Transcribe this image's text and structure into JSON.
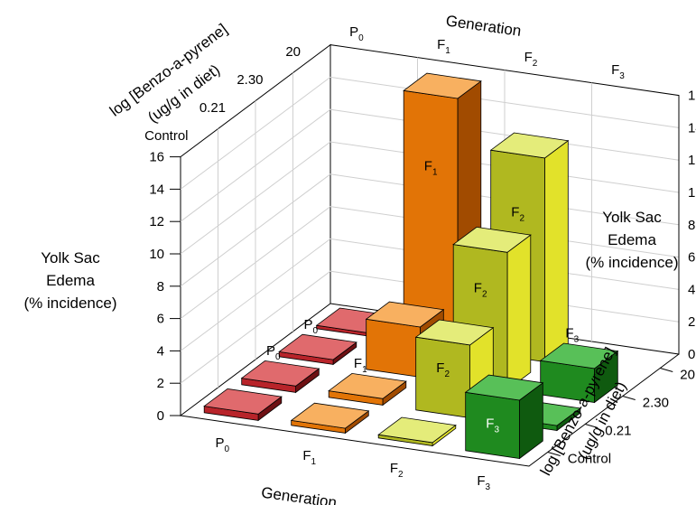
{
  "chart_data": {
    "type": "bar3d",
    "title": "",
    "x_axis": {
      "label": "Generation",
      "categories": [
        "P",
        "F",
        "F",
        "F"
      ],
      "subscripts": [
        "0",
        "1",
        "2",
        "3"
      ]
    },
    "depth_axis": {
      "label_line1": "log [Benzo-a-pyrene]",
      "label_line2": "(ug/g in diet)",
      "categories": [
        "Control",
        "0.21",
        "2.30",
        "20"
      ]
    },
    "z_axis": {
      "label_line1": "Yolk Sac",
      "label_line2": "Edema",
      "label_line3": "(% incidence)",
      "ticks": [
        "0",
        "2",
        "4",
        "6",
        "8",
        "10",
        "12",
        "14",
        "16"
      ],
      "zlim": [
        0,
        16
      ]
    },
    "bars": [
      {
        "generation": "P0",
        "dose": "Control",
        "value": 0.4
      },
      {
        "generation": "P0",
        "dose": "0.21",
        "value": 0.4
      },
      {
        "generation": "P0",
        "dose": "2.30",
        "value": 0.3
      },
      {
        "generation": "P0",
        "dose": "20",
        "value": 0.2
      },
      {
        "generation": "F1",
        "dose": "Control",
        "value": 0.3
      },
      {
        "generation": "F1",
        "dose": "0.21",
        "value": 0.4
      },
      {
        "generation": "F1",
        "dose": "2.30",
        "value": 3.1
      },
      {
        "generation": "F1",
        "dose": "20",
        "value": 15.5
      },
      {
        "generation": "F2",
        "dose": "Control",
        "value": 0.2
      },
      {
        "generation": "F2",
        "dose": "0.21",
        "value": 4.5
      },
      {
        "generation": "F2",
        "dose": "2.30",
        "value": 8.5
      },
      {
        "generation": "F2",
        "dose": "20",
        "value": 12.6
      },
      {
        "generation": "F3",
        "dose": "Control",
        "value": 3.6
      },
      {
        "generation": "F3",
        "dose": "0.21",
        "value": 0.3
      },
      {
        "generation": "F3",
        "dose": "2.30",
        "value": 2.1
      }
    ],
    "bar_labels": [
      {
        "generation": "P0",
        "dose": "0.21",
        "text": "P",
        "sub": "0"
      },
      {
        "generation": "P0",
        "dose": "2.30",
        "text": "P",
        "sub": "0"
      },
      {
        "generation": "F1",
        "dose": "0.21",
        "text": "F",
        "sub": "1"
      },
      {
        "generation": "F1",
        "dose": "20",
        "text": "F",
        "sub": "1"
      },
      {
        "generation": "F2",
        "dose": "0.21",
        "text": "F",
        "sub": "2"
      },
      {
        "generation": "F2",
        "dose": "2.30",
        "text": "F",
        "sub": "2"
      },
      {
        "generation": "F2",
        "dose": "20",
        "text": "F",
        "sub": "2"
      },
      {
        "generation": "F3",
        "dose": "Control",
        "text": "F",
        "sub": "3"
      },
      {
        "generation": "F3",
        "dose": "2.30",
        "text": "F",
        "sub": "3"
      }
    ],
    "colors": {
      "P0": {
        "front": "#b8242a",
        "side": "#6e1013",
        "top": "#e06a6d"
      },
      "F1": {
        "front": "#e27406",
        "side": "#a14b00",
        "top": "#f8b060"
      },
      "F2": {
        "front": "#b0b820",
        "side": "#e2e22a",
        "top": "#e4ec7a"
      },
      "F3": {
        "front": "#1f8a1f",
        "side": "#0f5a0f",
        "top": "#58c058"
      }
    },
    "grid": true
  }
}
